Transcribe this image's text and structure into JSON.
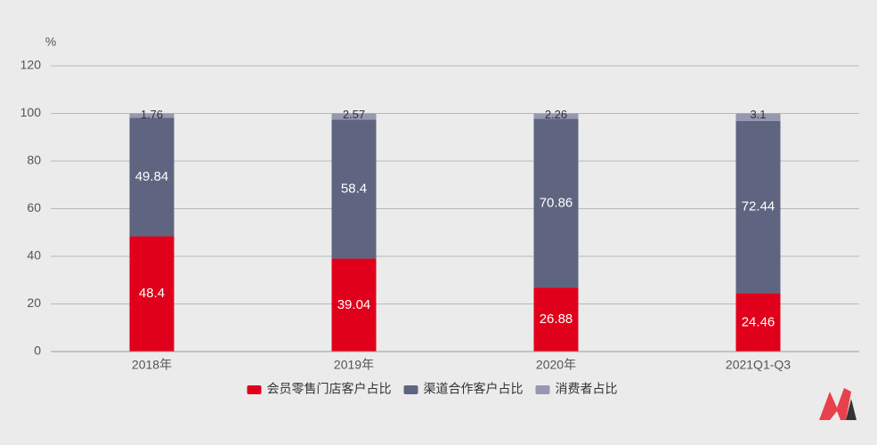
{
  "chart_data": {
    "type": "stacked_bar",
    "y_label": "%",
    "categories": [
      "2018年",
      "2019年",
      "2020年",
      "2021Q1-Q3"
    ],
    "series": [
      {
        "name": "会员零售门店客户占比",
        "color": "#e0001b",
        "values": [
          48.4,
          39.04,
          26.88,
          24.46
        ]
      },
      {
        "name": "渠道合作客户占比",
        "color": "#5f6480",
        "values": [
          49.84,
          58.4,
          70.86,
          72.44
        ]
      },
      {
        "name": "消费者占比",
        "color": "#9598b0",
        "values": [
          1.76,
          2.57,
          2.26,
          3.1
        ]
      }
    ],
    "ylim": [
      0,
      120
    ],
    "yticks": [
      0,
      20,
      40,
      60,
      80,
      100,
      120
    ],
    "grid": true,
    "legend": "bottom"
  }
}
